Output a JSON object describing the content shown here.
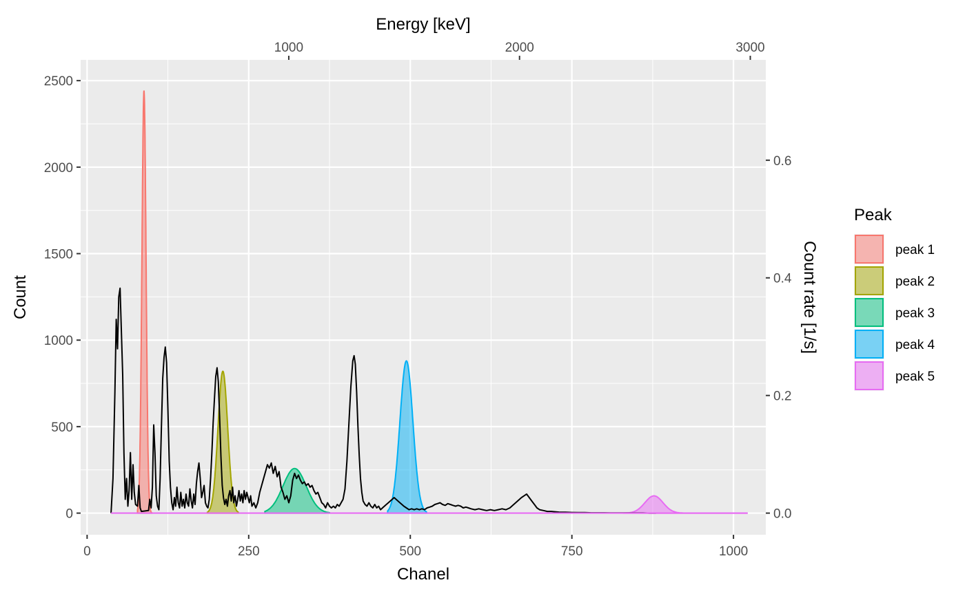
{
  "chart_data": {
    "type": "area",
    "xlabel": "Chanel",
    "ylabel": "Count",
    "x2label": "Energy [keV]",
    "y2label": "Count rate [1/s]",
    "xlim": [
      -10,
      1050
    ],
    "ylim": [
      -125,
      2620
    ],
    "x_ticks": [
      0,
      250,
      500,
      750,
      1000
    ],
    "y_ticks": [
      0,
      500,
      1000,
      1500,
      2000,
      2500
    ],
    "x2_ticks": [
      {
        "label": "1000",
        "channel": 312
      },
      {
        "label": "2000",
        "channel": 669
      },
      {
        "label": "3000",
        "channel": 1026
      }
    ],
    "y2_ticks": [
      {
        "label": "0.0",
        "count": 0
      },
      {
        "label": "0.2",
        "count": 680
      },
      {
        "label": "0.4",
        "count": 1360
      },
      {
        "label": "0.6",
        "count": 2040
      }
    ],
    "grid": true,
    "legend_position": "right",
    "legend_title": "Peak",
    "spectrum": {
      "color": "#000000",
      "points": [
        [
          37,
          0
        ],
        [
          40,
          200
        ],
        [
          43,
          700
        ],
        [
          45,
          1120
        ],
        [
          47,
          950
        ],
        [
          49,
          1250
        ],
        [
          51,
          1300
        ],
        [
          53,
          1050
        ],
        [
          55,
          800
        ],
        [
          57,
          350
        ],
        [
          59,
          80
        ],
        [
          61,
          200
        ],
        [
          63,
          40
        ],
        [
          65,
          130
        ],
        [
          67,
          350
        ],
        [
          69,
          80
        ],
        [
          71,
          280
        ],
        [
          73,
          120
        ],
        [
          75,
          50
        ],
        [
          78,
          40
        ],
        [
          80,
          160
        ],
        [
          82,
          30
        ],
        [
          84,
          10
        ],
        [
          95,
          15
        ],
        [
          97,
          80
        ],
        [
          99,
          30
        ],
        [
          101,
          150
        ],
        [
          103,
          510
        ],
        [
          105,
          350
        ],
        [
          107,
          100
        ],
        [
          109,
          40
        ],
        [
          111,
          20
        ],
        [
          113,
          200
        ],
        [
          115,
          500
        ],
        [
          117,
          780
        ],
        [
          119,
          900
        ],
        [
          121,
          960
        ],
        [
          123,
          870
        ],
        [
          125,
          600
        ],
        [
          127,
          300
        ],
        [
          129,
          150
        ],
        [
          131,
          60
        ],
        [
          133,
          20
        ],
        [
          135,
          90
        ],
        [
          137,
          40
        ],
        [
          139,
          150
        ],
        [
          141,
          60
        ],
        [
          143,
          30
        ],
        [
          145,
          120
        ],
        [
          147,
          40
        ],
        [
          149,
          80
        ],
        [
          151,
          30
        ],
        [
          153,
          110
        ],
        [
          155,
          60
        ],
        [
          157,
          40
        ],
        [
          159,
          140
        ],
        [
          161,
          70
        ],
        [
          163,
          30
        ],
        [
          165,
          110
        ],
        [
          167,
          50
        ],
        [
          169,
          170
        ],
        [
          171,
          240
        ],
        [
          173,
          290
        ],
        [
          175,
          200
        ],
        [
          177,
          90
        ],
        [
          179,
          120
        ],
        [
          181,
          160
        ],
        [
          183,
          60
        ],
        [
          185,
          40
        ],
        [
          187,
          30
        ],
        [
          189,
          80
        ],
        [
          191,
          200
        ],
        [
          193,
          350
        ],
        [
          195,
          520
        ],
        [
          197,
          660
        ],
        [
          199,
          790
        ],
        [
          201,
          840
        ],
        [
          203,
          760
        ],
        [
          205,
          560
        ],
        [
          207,
          330
        ],
        [
          209,
          160
        ],
        [
          211,
          90
        ],
        [
          213,
          50
        ],
        [
          215,
          80
        ],
        [
          217,
          40
        ],
        [
          219,
          100
        ],
        [
          221,
          130
        ],
        [
          223,
          70
        ],
        [
          225,
          150
        ],
        [
          227,
          60
        ],
        [
          229,
          100
        ],
        [
          231,
          40
        ],
        [
          233,
          80
        ],
        [
          235,
          130
        ],
        [
          237,
          70
        ],
        [
          239,
          110
        ],
        [
          241,
          60
        ],
        [
          243,
          130
        ],
        [
          245,
          80
        ],
        [
          247,
          120
        ],
        [
          249,
          90
        ],
        [
          251,
          60
        ],
        [
          253,
          100
        ],
        [
          255,
          40
        ],
        [
          258,
          60
        ],
        [
          261,
          30
        ],
        [
          264,
          60
        ],
        [
          267,
          120
        ],
        [
          270,
          160
        ],
        [
          273,
          200
        ],
        [
          276,
          240
        ],
        [
          279,
          280
        ],
        [
          282,
          260
        ],
        [
          285,
          290
        ],
        [
          288,
          230
        ],
        [
          291,
          270
        ],
        [
          294,
          210
        ],
        [
          297,
          240
        ],
        [
          300,
          150
        ],
        [
          303,
          120
        ],
        [
          306,
          80
        ],
        [
          309,
          100
        ],
        [
          312,
          60
        ],
        [
          315,
          100
        ],
        [
          318,
          190
        ],
        [
          321,
          230
        ],
        [
          324,
          200
        ],
        [
          327,
          220
        ],
        [
          330,
          190
        ],
        [
          333,
          170
        ],
        [
          336,
          180
        ],
        [
          339,
          160
        ],
        [
          342,
          170
        ],
        [
          345,
          150
        ],
        [
          348,
          160
        ],
        [
          351,
          130
        ],
        [
          354,
          110
        ],
        [
          357,
          120
        ],
        [
          360,
          90
        ],
        [
          363,
          60
        ],
        [
          366,
          50
        ],
        [
          369,
          30
        ],
        [
          372,
          60
        ],
        [
          375,
          40
        ],
        [
          378,
          30
        ],
        [
          381,
          40
        ],
        [
          384,
          30
        ],
        [
          387,
          50
        ],
        [
          390,
          40
        ],
        [
          393,
          60
        ],
        [
          396,
          80
        ],
        [
          399,
          140
        ],
        [
          402,
          300
        ],
        [
          405,
          520
        ],
        [
          408,
          730
        ],
        [
          411,
          880
        ],
        [
          413,
          910
        ],
        [
          415,
          860
        ],
        [
          417,
          700
        ],
        [
          419,
          500
        ],
        [
          421,
          330
        ],
        [
          423,
          200
        ],
        [
          425,
          120
        ],
        [
          427,
          70
        ],
        [
          430,
          50
        ],
        [
          433,
          40
        ],
        [
          436,
          60
        ],
        [
          439,
          40
        ],
        [
          442,
          30
        ],
        [
          445,
          50
        ],
        [
          448,
          30
        ],
        [
          451,
          40
        ],
        [
          454,
          20
        ],
        [
          457,
          30
        ],
        [
          460,
          40
        ],
        [
          463,
          50
        ],
        [
          466,
          60
        ],
        [
          469,
          70
        ],
        [
          472,
          80
        ],
        [
          475,
          90
        ],
        [
          478,
          80
        ],
        [
          481,
          70
        ],
        [
          484,
          60
        ],
        [
          487,
          50
        ],
        [
          490,
          40
        ],
        [
          494,
          30
        ],
        [
          498,
          20
        ],
        [
          502,
          25
        ],
        [
          506,
          20
        ],
        [
          510,
          25
        ],
        [
          514,
          20
        ],
        [
          518,
          25
        ],
        [
          522,
          20
        ],
        [
          526,
          30
        ],
        [
          530,
          35
        ],
        [
          534,
          40
        ],
        [
          538,
          50
        ],
        [
          542,
          55
        ],
        [
          546,
          60
        ],
        [
          550,
          50
        ],
        [
          554,
          45
        ],
        [
          558,
          55
        ],
        [
          562,
          50
        ],
        [
          566,
          45
        ],
        [
          570,
          40
        ],
        [
          574,
          45
        ],
        [
          578,
          40
        ],
        [
          582,
          30
        ],
        [
          586,
          35
        ],
        [
          590,
          30
        ],
        [
          594,
          25
        ],
        [
          600,
          20
        ],
        [
          606,
          25
        ],
        [
          612,
          20
        ],
        [
          618,
          15
        ],
        [
          624,
          20
        ],
        [
          630,
          15
        ],
        [
          636,
          20
        ],
        [
          642,
          25
        ],
        [
          648,
          20
        ],
        [
          654,
          30
        ],
        [
          660,
          50
        ],
        [
          666,
          70
        ],
        [
          672,
          90
        ],
        [
          676,
          100
        ],
        [
          680,
          110
        ],
        [
          684,
          90
        ],
        [
          688,
          70
        ],
        [
          692,
          50
        ],
        [
          696,
          30
        ],
        [
          700,
          20
        ],
        [
          706,
          15
        ],
        [
          712,
          10
        ],
        [
          718,
          10
        ],
        [
          724,
          8
        ],
        [
          730,
          6
        ],
        [
          740,
          5
        ],
        [
          750,
          4
        ],
        [
          760,
          3
        ],
        [
          770,
          3
        ],
        [
          780,
          2
        ],
        [
          790,
          2
        ],
        [
          800,
          2
        ],
        [
          810,
          1
        ],
        [
          820,
          1
        ],
        [
          830,
          1
        ],
        [
          840,
          1
        ],
        [
          850,
          1
        ],
        [
          860,
          1
        ],
        [
          870,
          0
        ],
        [
          880,
          0
        ]
      ]
    },
    "series": [
      {
        "name": "peak 1",
        "fill": "#F8766D",
        "center": 88,
        "height": 2440,
        "sigma": 3.2,
        "from": 78,
        "to": 100
      },
      {
        "name": "peak 2",
        "fill": "#A3A500",
        "center": 210,
        "height": 820,
        "sigma": 7.5,
        "from": 186,
        "to": 234
      },
      {
        "name": "peak 3",
        "fill": "#00BF7D",
        "center": 321,
        "height": 258,
        "sigma": 18,
        "from": 275,
        "to": 375
      },
      {
        "name": "peak 4",
        "fill": "#00B0F6",
        "center": 494,
        "height": 880,
        "sigma": 10,
        "from": 465,
        "to": 525
      },
      {
        "name": "peak 5",
        "fill": "#E76BF3",
        "center": 877,
        "height": 100,
        "sigma": 14,
        "from": 830,
        "to": 1022
      }
    ],
    "baseline": {
      "from": 37,
      "to": 1022,
      "color": "#E76BF3"
    }
  }
}
